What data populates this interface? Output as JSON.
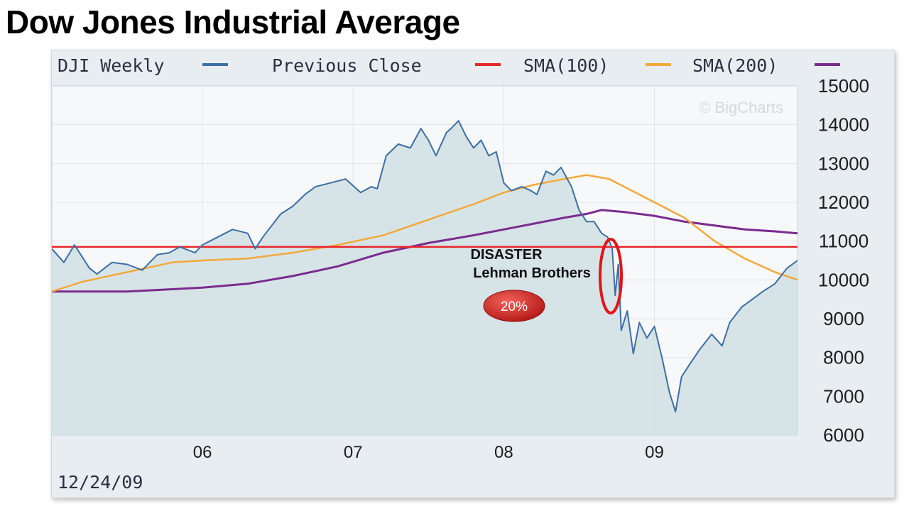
{
  "title": "Dow Jones Industrial Average",
  "date_label": "12/24/09",
  "watermark": "© BigCharts",
  "annotation": {
    "disaster": "DISASTER",
    "event": "Lehman Brothers",
    "drop_badge": "20%"
  },
  "colors": {
    "price": "#3d6ea5",
    "previous_close": "#e8262a",
    "sma100": "#f2a93b",
    "sma200": "#7b2b8f",
    "badge": "#c8201e"
  },
  "chart_data": {
    "type": "line",
    "title": "Dow Jones Industrial Average",
    "x_tick_labels": [
      "06",
      "07",
      "08",
      "09"
    ],
    "x_ticks": [
      2006,
      2007,
      2008,
      2009
    ],
    "xlim": [
      2005.0,
      2009.95
    ],
    "ylim": [
      6000,
      15000
    ],
    "y_ticks": [
      6000,
      7000,
      8000,
      9000,
      10000,
      11000,
      12000,
      13000,
      14000,
      15000
    ],
    "grid": true,
    "legend_position": "top",
    "series": [
      {
        "name": "DJI Weekly",
        "x": [
          2005.0,
          2005.08,
          2005.15,
          2005.25,
          2005.3,
          2005.4,
          2005.5,
          2005.6,
          2005.7,
          2005.78,
          2005.85,
          2005.95,
          2006.0,
          2006.1,
          2006.2,
          2006.3,
          2006.35,
          2006.4,
          2006.45,
          2006.52,
          2006.6,
          2006.68,
          2006.75,
          2006.85,
          2006.95,
          2007.05,
          2007.12,
          2007.16,
          2007.22,
          2007.3,
          2007.38,
          2007.45,
          2007.5,
          2007.55,
          2007.62,
          2007.65,
          2007.7,
          2007.75,
          2007.8,
          2007.85,
          2007.9,
          2007.95,
          2008.0,
          2008.05,
          2008.12,
          2008.18,
          2008.22,
          2008.28,
          2008.33,
          2008.38,
          2008.45,
          2008.5,
          2008.55,
          2008.6,
          2008.65,
          2008.69,
          2008.72,
          2008.74,
          2008.76,
          2008.78,
          2008.82,
          2008.86,
          2008.9,
          2008.95,
          2009.0,
          2009.05,
          2009.1,
          2009.14,
          2009.18,
          2009.23,
          2009.3,
          2009.38,
          2009.45,
          2009.5,
          2009.58,
          2009.65,
          2009.72,
          2009.8,
          2009.88,
          2009.95
        ],
        "y": [
          10800,
          10450,
          10900,
          10300,
          10150,
          10450,
          10400,
          10250,
          10650,
          10700,
          10850,
          10700,
          10900,
          11100,
          11300,
          11200,
          10800,
          11100,
          11350,
          11700,
          11900,
          12200,
          12400,
          12500,
          12600,
          12250,
          12400,
          12350,
          13200,
          13500,
          13400,
          13900,
          13600,
          13200,
          13800,
          13900,
          14100,
          13700,
          13400,
          13600,
          13200,
          13300,
          12500,
          12300,
          12400,
          12300,
          12200,
          12800,
          12700,
          12900,
          12400,
          11800,
          11500,
          11500,
          11200,
          11100,
          10800,
          9600,
          10400,
          8700,
          9200,
          8100,
          8900,
          8500,
          8800,
          8000,
          7100,
          6600,
          7500,
          7800,
          8200,
          8600,
          8300,
          8900,
          9300,
          9500,
          9700,
          9900,
          10300,
          10500
        ]
      },
      {
        "name": "Previous Close",
        "x": [
          2005.0,
          2009.95
        ],
        "y": [
          10850,
          10850
        ]
      },
      {
        "name": "SMA(100)",
        "x": [
          2005.0,
          2005.2,
          2005.5,
          2005.8,
          2006.0,
          2006.3,
          2006.6,
          2006.9,
          2007.2,
          2007.5,
          2007.8,
          2008.0,
          2008.2,
          2008.4,
          2008.55,
          2008.7,
          2008.85,
          2009.0,
          2009.2,
          2009.4,
          2009.6,
          2009.8,
          2009.95
        ],
        "y": [
          9700,
          9950,
          10200,
          10450,
          10500,
          10550,
          10700,
          10900,
          11150,
          11550,
          11950,
          12250,
          12450,
          12600,
          12700,
          12600,
          12300,
          12000,
          11600,
          11000,
          10550,
          10200,
          10000
        ]
      },
      {
        "name": "SMA(200)",
        "x": [
          2005.0,
          2005.5,
          2006.0,
          2006.3,
          2006.6,
          2006.9,
          2007.2,
          2007.5,
          2007.8,
          2008.0,
          2008.2,
          2008.4,
          2008.55,
          2008.65,
          2008.8,
          2009.0,
          2009.2,
          2009.4,
          2009.6,
          2009.8,
          2009.95
        ],
        "y": [
          9700,
          9700,
          9800,
          9900,
          10100,
          10350,
          10700,
          10950,
          11150,
          11300,
          11450,
          11600,
          11700,
          11800,
          11750,
          11650,
          11500,
          11400,
          11300,
          11250,
          11200
        ]
      }
    ]
  }
}
